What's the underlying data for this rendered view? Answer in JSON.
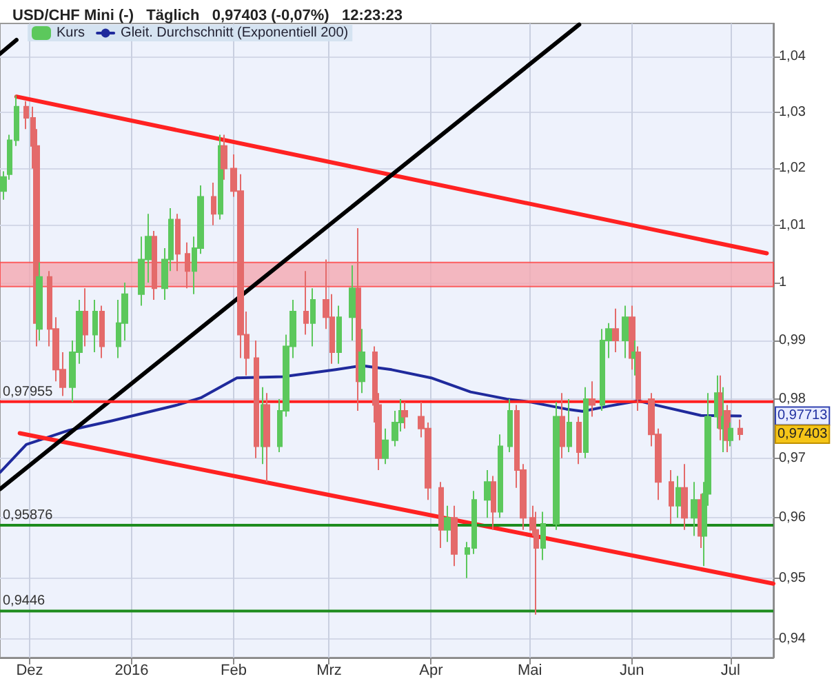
{
  "chart_data": {
    "type": "candlestick",
    "title": "USD/CHF Mini (-)   Täglich   0,97403 (-0,07%)   12:23:23",
    "series": [
      {
        "name": "Kurs",
        "x": [
          "2015-11-23",
          "2015-11-25",
          "2015-11-27",
          "2015-11-30",
          "2015-12-02",
          "2015-12-03",
          "2015-12-04",
          "2015-12-07",
          "2015-12-09",
          "2015-12-11",
          "2015-12-14",
          "2015-12-16",
          "2015-12-18",
          "2015-12-21",
          "2015-12-23",
          "2015-12-28",
          "2015-12-30",
          "2016-01-04",
          "2016-01-06",
          "2016-01-08",
          "2016-01-11",
          "2016-01-13",
          "2016-01-15",
          "2016-01-18",
          "2016-01-20",
          "2016-01-22",
          "2016-01-26",
          "2016-01-28",
          "2016-01-29",
          "2016-02-01",
          "2016-02-03",
          "2016-02-05",
          "2016-02-08",
          "2016-02-10",
          "2016-02-11",
          "2016-02-15",
          "2016-02-17",
          "2016-02-19",
          "2016-02-23",
          "2016-02-25",
          "2016-02-29",
          "2016-03-02",
          "2016-03-04",
          "2016-03-08",
          "2016-03-10",
          "2016-03-11",
          "2016-03-15",
          "2016-03-16",
          "2016-03-18",
          "2016-03-21",
          "2016-03-23",
          "2016-03-24",
          "2016-03-29",
          "2016-03-31",
          "2016-04-04",
          "2016-04-06",
          "2016-04-08",
          "2016-04-12",
          "2016-04-14",
          "2016-04-18",
          "2016-04-20",
          "2016-04-22",
          "2016-04-25",
          "2016-04-27",
          "2016-04-29",
          "2016-05-02",
          "2016-05-03",
          "2016-05-05",
          "2016-05-09",
          "2016-05-11",
          "2016-05-13",
          "2016-05-16",
          "2016-05-18",
          "2016-05-20",
          "2016-05-23",
          "2016-05-25",
          "2016-05-27",
          "2016-05-30",
          "2016-06-01",
          "2016-06-02",
          "2016-06-03",
          "2016-06-07",
          "2016-06-09",
          "2016-06-13",
          "2016-06-15",
          "2016-06-17",
          "2016-06-20",
          "2016-06-22",
          "2016-06-23",
          "2016-06-24",
          "2016-06-27",
          "2016-06-28",
          "2016-06-29",
          "2016-06-30",
          "2016-07-01",
          "2016-07-04"
        ],
        "ohlc": [
          [
            1.016,
            1.0195,
            1.0145,
            1.0185
          ],
          [
            1.019,
            1.026,
            1.018,
            1.025
          ],
          [
            1.025,
            1.033,
            1.024,
            1.031
          ],
          [
            1.031,
            1.032,
            1.027,
            1.029
          ],
          [
            1.029,
            1.031,
            1.02,
            1.024
          ],
          [
            1.024,
            1.027,
            0.989,
            0.993
          ],
          [
            0.992,
            1.0035,
            0.99,
            1.001
          ],
          [
            1.001,
            1.002,
            0.989,
            0.992
          ],
          [
            0.992,
            0.994,
            0.983,
            0.985
          ],
          [
            0.985,
            0.988,
            0.9805,
            0.982
          ],
          [
            0.982,
            0.99,
            0.9795,
            0.988
          ],
          [
            0.988,
            0.997,
            0.986,
            0.995
          ],
          [
            0.995,
            0.999,
            0.989,
            0.991
          ],
          [
            0.991,
            0.997,
            0.988,
            0.995
          ],
          [
            0.995,
            0.996,
            0.987,
            0.989
          ],
          [
            0.989,
            0.997,
            0.987,
            0.993
          ],
          [
            0.993,
            1.0,
            0.99,
            0.998
          ],
          [
            0.998,
            1.008,
            0.996,
            1.004
          ],
          [
            1.004,
            1.012,
            1.0,
            1.008
          ],
          [
            1.008,
            1.009,
            0.997,
            0.999
          ],
          [
            0.999,
            1.006,
            0.997,
            1.004
          ],
          [
            1.004,
            1.013,
            1.002,
            1.011
          ],
          [
            1.011,
            1.012,
            1.002,
            1.005
          ],
          [
            1.005,
            1.007,
            0.999,
            1.002
          ],
          [
            1.002,
            1.008,
            0.998,
            1.006
          ],
          [
            1.006,
            1.017,
            1.005,
            1.015
          ],
          [
            1.015,
            1.0175,
            1.01,
            1.012
          ],
          [
            1.012,
            1.026,
            1.011,
            1.024
          ],
          [
            1.024,
            1.026,
            1.018,
            1.02
          ],
          [
            1.02,
            1.0225,
            1.015,
            1.016
          ],
          [
            1.016,
            1.019,
            0.987,
            0.991
          ],
          [
            0.991,
            0.995,
            0.984,
            0.987
          ],
          [
            0.987,
            0.99,
            0.97,
            0.972
          ],
          [
            0.972,
            0.982,
            0.969,
            0.979
          ],
          [
            0.979,
            0.981,
            0.966,
            0.972
          ],
          [
            0.972,
            0.98,
            0.971,
            0.978
          ],
          [
            0.978,
            0.991,
            0.977,
            0.989
          ],
          [
            0.989,
            0.997,
            0.987,
            0.995
          ],
          [
            0.995,
            1.002,
            0.991,
            0.993
          ],
          [
            0.993,
            0.999,
            0.989,
            0.997
          ],
          [
            0.997,
            1.004,
            0.992,
            0.994
          ],
          [
            0.994,
            0.998,
            0.986,
            0.988
          ],
          [
            0.988,
            0.996,
            0.986,
            0.994
          ],
          [
            0.994,
            1.003,
            0.99,
            0.999
          ],
          [
            0.999,
            1.0095,
            0.978,
            0.983
          ],
          [
            0.983,
            0.992,
            0.981,
            0.988
          ],
          [
            0.988,
            0.989,
            0.976,
            0.979
          ],
          [
            0.979,
            0.981,
            0.968,
            0.97
          ],
          [
            0.97,
            0.975,
            0.969,
            0.973
          ],
          [
            0.973,
            0.978,
            0.972,
            0.976
          ],
          [
            0.976,
            0.98,
            0.9745,
            0.978
          ],
          [
            0.978,
            0.9795,
            0.975,
            0.977
          ],
          [
            0.977,
            0.9795,
            0.9735,
            0.975
          ],
          [
            0.975,
            0.976,
            0.963,
            0.965
          ],
          [
            0.965,
            0.966,
            0.955,
            0.958
          ],
          [
            0.958,
            0.962,
            0.956,
            0.96
          ],
          [
            0.96,
            0.962,
            0.952,
            0.954
          ],
          [
            0.954,
            0.956,
            0.95,
            0.955
          ],
          [
            0.955,
            0.9645,
            0.954,
            0.963
          ],
          [
            0.963,
            0.968,
            0.96,
            0.966
          ],
          [
            0.966,
            0.967,
            0.958,
            0.961
          ],
          [
            0.961,
            0.974,
            0.96,
            0.972
          ],
          [
            0.972,
            0.98,
            0.971,
            0.978
          ],
          [
            0.978,
            0.979,
            0.965,
            0.968
          ],
          [
            0.968,
            0.969,
            0.958,
            0.96
          ],
          [
            0.96,
            0.962,
            0.957,
            0.958
          ],
          [
            0.958,
            0.961,
            0.944,
            0.955
          ],
          [
            0.955,
            0.961,
            0.953,
            0.959
          ],
          [
            0.959,
            0.9795,
            0.958,
            0.977
          ],
          [
            0.977,
            0.981,
            0.97,
            0.972
          ],
          [
            0.972,
            0.98,
            0.971,
            0.976
          ],
          [
            0.976,
            0.977,
            0.969,
            0.971
          ],
          [
            0.971,
            0.982,
            0.97,
            0.98
          ],
          [
            0.98,
            0.983,
            0.977,
            0.979
          ],
          [
            0.979,
            0.992,
            0.978,
            0.99
          ],
          [
            0.99,
            0.993,
            0.987,
            0.992
          ],
          [
            0.992,
            0.9955,
            0.988,
            0.99
          ],
          [
            0.99,
            0.996,
            0.987,
            0.994
          ],
          [
            0.994,
            0.996,
            0.985,
            0.987
          ],
          [
            0.987,
            0.99,
            0.984,
            0.988
          ],
          [
            0.988,
            0.989,
            0.978,
            0.98
          ],
          [
            0.98,
            0.981,
            0.972,
            0.974
          ],
          [
            0.974,
            0.975,
            0.963,
            0.966
          ],
          [
            0.966,
            0.968,
            0.959,
            0.962
          ],
          [
            0.962,
            0.967,
            0.96,
            0.965
          ],
          [
            0.965,
            0.969,
            0.958,
            0.96
          ],
          [
            0.96,
            0.966,
            0.957,
            0.963
          ],
          [
            0.963,
            0.964,
            0.955,
            0.957
          ],
          [
            0.957,
            0.966,
            0.952,
            0.964
          ],
          [
            0.964,
            0.981,
            0.962,
            0.977
          ],
          [
            0.977,
            0.984,
            0.975,
            0.981
          ],
          [
            0.981,
            0.984,
            0.973,
            0.975
          ],
          [
            0.975,
            0.982,
            0.971,
            0.977
          ],
          [
            0.978,
            0.979,
            0.971,
            0.973
          ],
          [
            0.973,
            0.976,
            0.972,
            0.975
          ],
          [
            0.975,
            0.9765,
            0.973,
            0.97403
          ]
        ]
      },
      {
        "name": "Gleit. Durchschnitt (Exponentiell 200)",
        "type": "line",
        "color": "#1f2a9c",
        "x": [
          "2015-11-22",
          "2015-11-30",
          "2015-12-13",
          "2015-12-26",
          "2016-01-15",
          "2016-01-22",
          "2016-02-02",
          "2016-02-16",
          "2016-03-03",
          "2016-03-11",
          "2016-03-20",
          "2016-04-01",
          "2016-04-13",
          "2016-04-24",
          "2016-05-01",
          "2016-05-12",
          "2016-05-17",
          "2016-05-25",
          "2016-06-03",
          "2016-06-08",
          "2016-06-22",
          "2016-07-04"
        ],
        "values": [
          0.9676,
          0.9723,
          0.9747,
          0.9763,
          0.979,
          0.9802,
          0.9836,
          0.9838,
          0.985,
          0.9857,
          0.985,
          0.9836,
          0.9812,
          0.98,
          0.9795,
          0.9783,
          0.9779,
          0.9788,
          0.9797,
          0.979,
          0.9772,
          0.97713
        ]
      },
      {
        "type": "line",
        "color": "#ff2222",
        "x": [
          "2015-11-27",
          "2016-07-12"
        ],
        "values": [
          1.0328,
          1.0051
        ]
      },
      {
        "type": "line",
        "color": "#ff2222",
        "x": [
          "2015-11-28",
          "2016-07-14"
        ],
        "values": [
          0.9742,
          0.9491
        ]
      },
      {
        "type": "line",
        "color": "#000000",
        "x": [
          "2015-11-22",
          "2016-05-16"
        ],
        "values": [
          0.9648,
          1.0458
        ]
      },
      {
        "type": "line",
        "color": "#000000",
        "x": [
          "2015-11-22",
          "2015-11-27"
        ],
        "values": [
          1.0405,
          1.043
        ]
      }
    ],
    "xlim": [
      "2015-11-22",
      "2016-07-14"
    ],
    "xticks": [
      {
        "value": "2015-12-01",
        "label": "Dez"
      },
      {
        "value": "2016-01-01",
        "label": "2016"
      },
      {
        "value": "2016-02-01",
        "label": "Feb"
      },
      {
        "value": "2016-03-01",
        "label": "Mrz"
      },
      {
        "value": "2016-04-01",
        "label": "Apr"
      },
      {
        "value": "2016-05-01",
        "label": "Mai"
      },
      {
        "value": "2016-06-01",
        "label": "Jun"
      },
      {
        "value": "2016-07-01",
        "label": "Jul"
      }
    ],
    "ylim": [
      0.937,
      1.046
    ],
    "yticks": [
      {
        "value": 0.94,
        "label": "0,94"
      },
      {
        "value": 0.95,
        "label": "0,95"
      },
      {
        "value": 0.96,
        "label": "0,96"
      },
      {
        "value": 0.97,
        "label": "0,97"
      },
      {
        "value": 0.98,
        "label": "0,98"
      },
      {
        "value": 0.99,
        "label": "0,99"
      },
      {
        "value": 1,
        "label": "1"
      },
      {
        "value": 1.01,
        "label": "1,01"
      },
      {
        "value": 1.02,
        "label": "1,02"
      },
      {
        "value": 1.03,
        "label": "1,03"
      },
      {
        "value": 1.04,
        "label": "1,04"
      }
    ],
    "log": true,
    "ref_lines": [
      {
        "axis": "y",
        "value": 0.97955,
        "label": "0,97955",
        "color": "#ff2020"
      },
      {
        "axis": "y",
        "value": 0.95876,
        "label": "0,95876",
        "color": "#1e8c1e"
      },
      {
        "axis": "y",
        "value": 0.9446,
        "label": "0,9446",
        "color": "#1e8c1e"
      }
    ],
    "bands": [
      {
        "axis": "y",
        "from": 0.9993,
        "to": 1.0035,
        "color": "#f4a7b0"
      }
    ],
    "annotations": [
      {
        "text": "0,97713",
        "x": "2016-07-04",
        "y": 0.97713
      },
      {
        "text": "0,97403",
        "x": "2016-07-04",
        "y": 0.97403
      }
    ],
    "grid": true,
    "legend": "top left",
    "marker": "none"
  }
}
